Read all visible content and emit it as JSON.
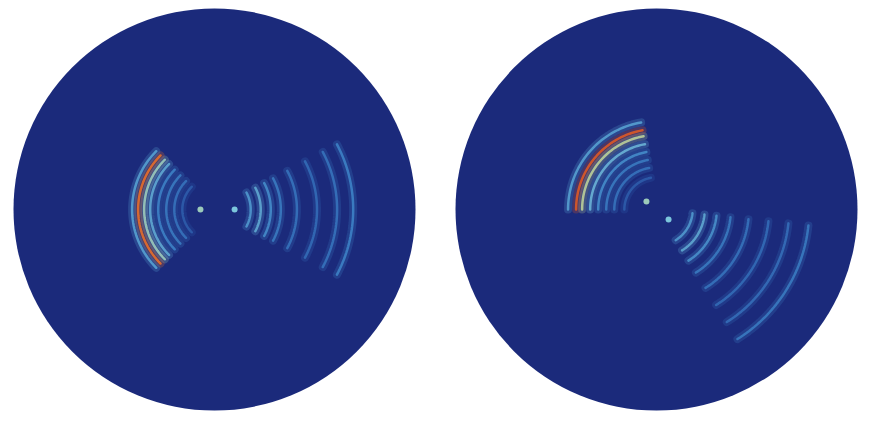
{
  "chart_data": [
    {
      "type": "wave_field",
      "tick_labels": false,
      "xlim": [
        -1,
        1
      ],
      "ylim": [
        -1,
        1
      ],
      "zlim": [
        0,
        1
      ],
      "lobes": [
        {
          "angle": 180,
          "half_width": 45,
          "arcs": [
            {
              "r": 0.16,
              "value": 0.22
            },
            {
              "r": 0.2,
              "value": 0.28
            },
            {
              "r": 0.24,
              "value": 0.3
            },
            {
              "r": 0.28,
              "value": 0.32
            },
            {
              "r": 0.32,
              "value": 0.42
            },
            {
              "r": 0.35,
              "value": 0.55
            },
            {
              "r": 0.38,
              "value": 0.85
            },
            {
              "r": 0.41,
              "value": 0.4
            }
          ]
        },
        {
          "angle": 0,
          "half_width": 28,
          "arcs": [
            {
              "r": 0.18,
              "value": 0.38
            },
            {
              "r": 0.23,
              "value": 0.42
            },
            {
              "r": 0.28,
              "value": 0.35
            },
            {
              "r": 0.33,
              "value": 0.3
            },
            {
              "r": 0.41,
              "value": 0.28
            },
            {
              "r": 0.51,
              "value": 0.26
            },
            {
              "r": 0.61,
              "value": 0.28
            },
            {
              "r": 0.69,
              "value": 0.32
            }
          ]
        }
      ],
      "spots": [
        {
          "x": -0.07,
          "y": 0,
          "value": 0.55
        },
        {
          "x": 0.1,
          "y": 0,
          "value": 0.5
        }
      ]
    },
    {
      "type": "wave_field",
      "tick_labels": false,
      "xlim": [
        -1,
        1
      ],
      "ylim": [
        -1,
        1
      ],
      "zlim": [
        0,
        1
      ],
      "lobes": [
        {
          "angle": 140,
          "half_width": 40,
          "arcs": [
            {
              "r": 0.16,
              "value": 0.22
            },
            {
              "r": 0.21,
              "value": 0.28
            },
            {
              "r": 0.25,
              "value": 0.3
            },
            {
              "r": 0.29,
              "value": 0.35
            },
            {
              "r": 0.33,
              "value": 0.45
            },
            {
              "r": 0.37,
              "value": 0.6
            },
            {
              "r": 0.4,
              "value": 0.9
            },
            {
              "r": 0.44,
              "value": 0.4
            }
          ]
        },
        {
          "angle": -32,
          "half_width": 26,
          "arcs": [
            {
              "r": 0.18,
              "value": 0.38
            },
            {
              "r": 0.24,
              "value": 0.42
            },
            {
              "r": 0.3,
              "value": 0.36
            },
            {
              "r": 0.37,
              "value": 0.3
            },
            {
              "r": 0.46,
              "value": 0.28
            },
            {
              "r": 0.56,
              "value": 0.26
            },
            {
              "r": 0.66,
              "value": 0.27
            },
            {
              "r": 0.76,
              "value": 0.3
            }
          ]
        }
      ],
      "spots": [
        {
          "x": -0.05,
          "y": 0.04,
          "value": 0.55
        },
        {
          "x": 0.06,
          "y": -0.05,
          "value": 0.5
        }
      ]
    }
  ]
}
